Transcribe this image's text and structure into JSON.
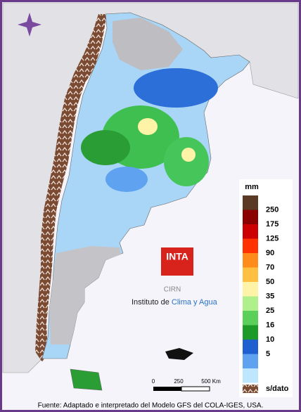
{
  "legend": {
    "title": "mm",
    "labels": [
      "250",
      "175",
      "125",
      "90",
      "70",
      "50",
      "35",
      "25",
      "16",
      "10",
      "5"
    ],
    "colors": [
      "#5a3a24",
      "#8b0000",
      "#cc0000",
      "#ff3300",
      "#ff8c1a",
      "#ffbf40",
      "#fff3a8",
      "#b0f08c",
      "#5ad05a",
      "#1e9a28",
      "#1f5fd0",
      "#5ea2f0",
      "#bfe6ff"
    ],
    "no_data": "s/dato"
  },
  "logo": {
    "name": "INTA",
    "unit": "CIRN",
    "institute": [
      "Instituto de ",
      "Clima y Agua"
    ]
  },
  "scale_bar": {
    "labels": [
      "0",
      "250",
      "500 Km"
    ]
  },
  "footer": "Fuente: Adaptado e interpretado del Modelo GFS del COLA-IGES, USA."
}
